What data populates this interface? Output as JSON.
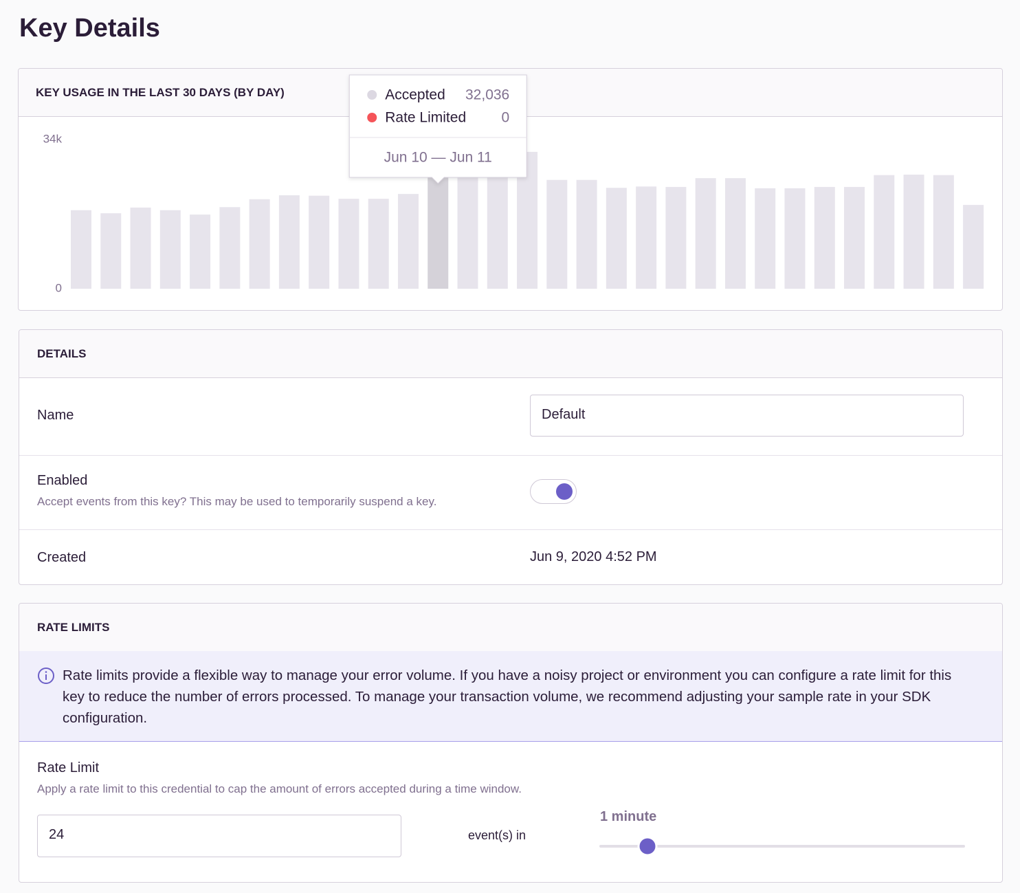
{
  "header": {
    "title": "Key Details"
  },
  "chart_data": {
    "type": "bar",
    "title": "KEY USAGE IN THE LAST 30 DAYS (BY DAY)",
    "series": [
      {
        "name": "Accepted",
        "color": "#e7e4ec",
        "values": [
          17900,
          17200,
          18500,
          17900,
          16900,
          18600,
          20400,
          21300,
          21200,
          20500,
          20500,
          21600,
          32036,
          31000,
          31000,
          31200,
          24800,
          24800,
          23000,
          23300,
          23200,
          25200,
          25200,
          22900,
          22900,
          23200,
          23200,
          25900,
          26000,
          25900,
          19100
        ]
      }
    ],
    "ylim": [
      0,
      34000
    ],
    "yticks": [
      0,
      {
        "value": 34000,
        "label": "34k"
      }
    ],
    "tooltip": {
      "items": [
        {
          "name": "Accepted",
          "color": "#dcd8e2",
          "value": 32036,
          "label": "32,036"
        },
        {
          "name": "Rate Limited",
          "color": "#f55459",
          "value": 0
        }
      ],
      "range": "Jun 10 — Jun 11"
    }
  },
  "details": {
    "title": "DETAILS",
    "name": {
      "label": "Name",
      "value": "Default"
    },
    "enabled": {
      "label": "Enabled",
      "help": "Accept events from this key? This may be used to temporarily suspend a key.",
      "on": true
    },
    "created": {
      "label": "Created",
      "value": "Jun 9, 2020 4:52 PM"
    }
  },
  "rate_limits": {
    "title": "RATE LIMITS",
    "alert": "Rate limits provide a flexible way to manage your error volume. If you have a noisy project or environment you can configure a rate limit for this key to reduce the number of errors processed. To manage your transaction volume, we recommend adjusting your sample rate in your SDK configuration.",
    "label": "Rate Limit",
    "help": "Apply a rate limit to this credential to cap the amount of errors accepted during a time window.",
    "count": 24,
    "unit": "event(s) in",
    "window": "1 minute"
  }
}
